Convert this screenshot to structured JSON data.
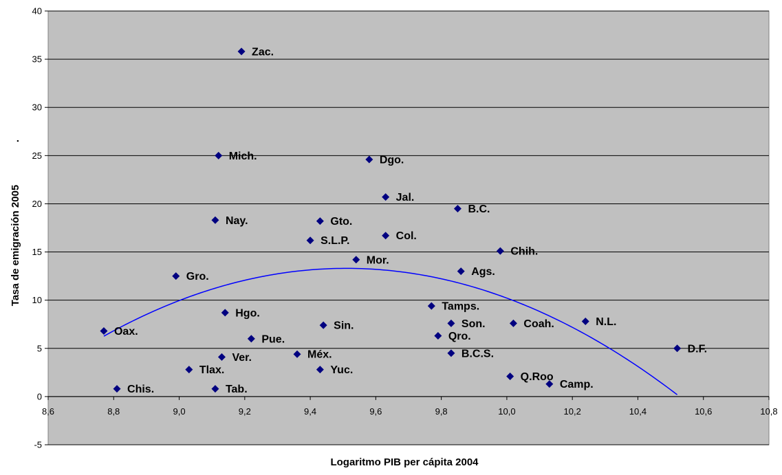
{
  "chart_data": {
    "type": "scatter",
    "title": "",
    "xlabel": "Logaritmo PIB per cápita 2004",
    "ylabel": "Tasa de emigración 2005",
    "ylabel_suffix": ".",
    "xlim": [
      8.6,
      10.8
    ],
    "ylim": [
      -5,
      40
    ],
    "x_ticks": [
      "8,6",
      "8,8",
      "9,0",
      "9,2",
      "9,4",
      "9,6",
      "9,8",
      "10,0",
      "10,2",
      "10,4",
      "10,6",
      "10,8"
    ],
    "y_ticks": [
      "-5",
      "0",
      "5",
      "10",
      "15",
      "20",
      "25",
      "30",
      "35",
      "40"
    ],
    "grid": "horizontal",
    "colors": {
      "plot_background": "#c0c0c0",
      "marker": "#000080",
      "trendline": "#0000ff",
      "gridline": "#000000"
    },
    "points": [
      {
        "label": "Zac.",
        "x": 9.19,
        "y": 35.8
      },
      {
        "label": "Mich.",
        "x": 9.12,
        "y": 25.0
      },
      {
        "label": "Dgo.",
        "x": 9.58,
        "y": 24.6
      },
      {
        "label": "Jal.",
        "x": 9.63,
        "y": 20.7
      },
      {
        "label": "B.C.",
        "x": 9.85,
        "y": 19.5
      },
      {
        "label": "Nay.",
        "x": 9.11,
        "y": 18.3
      },
      {
        "label": "Gto.",
        "x": 9.43,
        "y": 18.2
      },
      {
        "label": "Col.",
        "x": 9.63,
        "y": 16.7
      },
      {
        "label": "S.L.P.",
        "x": 9.4,
        "y": 16.2
      },
      {
        "label": "Chih.",
        "x": 9.98,
        "y": 15.1
      },
      {
        "label": "Mor.",
        "x": 9.54,
        "y": 14.2
      },
      {
        "label": "Ags.",
        "x": 9.86,
        "y": 13.0
      },
      {
        "label": "Gro.",
        "x": 8.99,
        "y": 12.5
      },
      {
        "label": "Tamps.",
        "x": 9.77,
        "y": 9.4
      },
      {
        "label": "Hgo.",
        "x": 9.14,
        "y": 8.7
      },
      {
        "label": "N.L.",
        "x": 10.24,
        "y": 7.8
      },
      {
        "label": "Sin.",
        "x": 9.44,
        "y": 7.4
      },
      {
        "label": "Son.",
        "x": 9.83,
        "y": 7.6
      },
      {
        "label": "Coah.",
        "x": 10.02,
        "y": 7.6
      },
      {
        "label": "Oax.",
        "x": 8.77,
        "y": 6.8
      },
      {
        "label": "Qro.",
        "x": 9.79,
        "y": 6.3
      },
      {
        "label": "Pue.",
        "x": 9.22,
        "y": 6.0
      },
      {
        "label": "D.F.",
        "x": 10.52,
        "y": 5.0
      },
      {
        "label": "Méx.",
        "x": 9.36,
        "y": 4.4
      },
      {
        "label": "B.C.S.",
        "x": 9.83,
        "y": 4.5
      },
      {
        "label": "Ver.",
        "x": 9.13,
        "y": 4.1
      },
      {
        "label": "Tlax.",
        "x": 9.03,
        "y": 2.8
      },
      {
        "label": "Yuc.",
        "x": 9.43,
        "y": 2.8
      },
      {
        "label": "Q.Roo",
        "x": 10.01,
        "y": 2.1
      },
      {
        "label": "Camp.",
        "x": 10.13,
        "y": 1.3
      },
      {
        "label": "Chis.",
        "x": 8.81,
        "y": 0.8
      },
      {
        "label": "Tab.",
        "x": 9.11,
        "y": 0.8
      }
    ],
    "trendline": {
      "type": "quadratic",
      "vertex_x": 9.51,
      "vertex_y": 13.3,
      "a": -12.85,
      "x_range": [
        8.77,
        10.52
      ]
    }
  }
}
